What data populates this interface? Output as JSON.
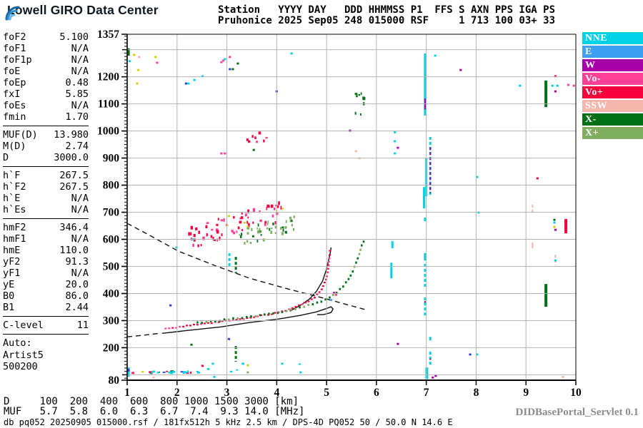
{
  "header": {
    "brand": "Lowell GIRO Data Center",
    "station_line1": "Station   YYYY DAY   DDD HHMMSS P1  FFS S AXN PPS IGA PS",
    "station_line2": "Pruhonice 2025 Sep05 248 015000 RSF     1 713 100 03+ 33"
  },
  "params": {
    "groups": [
      {
        "rows": [
          [
            "foF2",
            "5.100"
          ],
          [
            "foF1",
            "N/A"
          ],
          [
            "foF1p",
            "N/A"
          ],
          [
            "foE",
            "N/A"
          ],
          [
            "foEp",
            "0.48"
          ],
          [
            "fxI",
            "5.85"
          ],
          [
            "foEs",
            "N/A"
          ],
          [
            "fmin",
            "1.70"
          ]
        ]
      },
      {
        "rows": [
          [
            "MUF(D)",
            "13.980"
          ],
          [
            "M(D)",
            "2.74"
          ],
          [
            "D",
            "3000.0"
          ]
        ]
      },
      {
        "rows": [
          [
            "h`F",
            "267.5"
          ],
          [
            "h`F2",
            "267.5"
          ],
          [
            "h`E",
            "N/A"
          ],
          [
            "h`Es",
            "N/A"
          ]
        ]
      },
      {
        "rows": [
          [
            "hmF2",
            "346.4"
          ],
          [
            "hmF1",
            "N/A"
          ],
          [
            "hmE",
            "110.0"
          ],
          [
            "yF2",
            "91.3"
          ],
          [
            "yF1",
            "N/A"
          ],
          [
            "yE",
            "20.0"
          ],
          [
            "B0",
            "86.0"
          ],
          [
            "B1",
            "2.44"
          ]
        ]
      },
      {
        "rows": [
          [
            "C-level",
            "11"
          ]
        ]
      }
    ],
    "auto_lines": [
      "Auto:",
      "Artist5",
      "500200"
    ]
  },
  "legend": [
    {
      "label": "NNE",
      "color": "#00d2e6"
    },
    {
      "label": "E",
      "color": "#3f9ff0"
    },
    {
      "label": "W",
      "color": "#a800a8"
    },
    {
      "label": "Vo-",
      "color": "#ff4097"
    },
    {
      "label": "Vo+",
      "color": "#f8003c"
    },
    {
      "label": "SSW",
      "color": "#f4b6ac"
    },
    {
      "label": "X-",
      "color": "#007017"
    },
    {
      "label": "X+",
      "color": "#7fae5f"
    }
  ],
  "footer": {
    "d_row": "D     100  200  400  600  800 1000 1500 3000 [km]",
    "muf_row": "MUF   5.7  5.8  6.0  6.3  6.7  7.4  9.3 14.0 [MHz]",
    "status": "db pq052 20250905 015000.rsf / 181fx512h 5 kHz 2.5 km / DPS-4D PQ052 50 / 50.0 N 14.6 E",
    "servlet": "DIDBasePortal_Servlet 0.1"
  },
  "chart_data": {
    "type": "scatter",
    "x_unit": "MHz",
    "y_unit": "km",
    "xlim": [
      1,
      10
    ],
    "ylim": [
      80,
      1357
    ],
    "x_ticks": [
      1,
      2,
      3,
      4,
      5,
      6,
      7,
      8,
      9,
      10
    ],
    "y_ticks": [
      1357,
      1200,
      1100,
      1000,
      900,
      800,
      700,
      600,
      500,
      400,
      300,
      200,
      80
    ],
    "grid": true,
    "colors": {
      "nne": "#00d2e6",
      "e": "#3f9ff0",
      "w": "#a800a8",
      "vo_minus": "#ff4097",
      "vo_plus": "#f8003c",
      "ssw": "#f4b6ac",
      "x_minus": "#007017",
      "x_plus": "#7fae5f",
      "yellow": "#cfd000",
      "blue": "#2b3fd6",
      "grid": "#b3b3b3",
      "frame": "#000000"
    },
    "curves": [
      {
        "name": "topside-extrapolation-dashed",
        "style": "dashed",
        "points": [
          [
            1.0,
            659
          ],
          [
            1.46,
            614
          ],
          [
            2.03,
            556
          ],
          [
            2.75,
            504
          ],
          [
            3.46,
            456
          ],
          [
            4.18,
            419
          ],
          [
            4.9,
            385
          ],
          [
            5.47,
            356
          ],
          [
            5.83,
            338
          ]
        ]
      },
      {
        "name": "profile-below-fmin-dashed",
        "style": "dashed",
        "points": [
          [
            1.0,
            240
          ],
          [
            1.32,
            246
          ],
          [
            1.64,
            253
          ]
        ]
      },
      {
        "name": "true-height-profile",
        "style": "solid",
        "points": [
          [
            1.7,
            253
          ],
          [
            2.32,
            266
          ],
          [
            2.89,
            277
          ],
          [
            3.46,
            293
          ],
          [
            4.04,
            306
          ],
          [
            4.47,
            319
          ],
          [
            4.79,
            332
          ],
          [
            4.99,
            344
          ],
          [
            5.09,
            351
          ],
          [
            5.13,
            343
          ],
          [
            5.09,
            330
          ],
          [
            4.94,
            322
          ],
          [
            4.81,
            322
          ]
        ]
      },
      {
        "name": "synthesized-o-trace",
        "style": "solid",
        "points": [
          [
            4.26,
            335
          ],
          [
            4.47,
            356
          ],
          [
            4.66,
            380
          ],
          [
            4.8,
            409
          ],
          [
            4.92,
            446
          ],
          [
            4.99,
            485
          ],
          [
            5.05,
            530
          ],
          [
            5.08,
            556
          ],
          [
            5.09,
            570
          ]
        ]
      }
    ],
    "dot_traces": [
      {
        "name": "o-trace-echoes",
        "main": "vo_plus",
        "alt": "vo_minus",
        "ratio": 0.62,
        "step": 5.0,
        "size": [
          3,
          2.2
        ],
        "points": [
          [
            1.7,
            269
          ],
          [
            2.18,
            280
          ],
          [
            2.75,
            293
          ],
          [
            3.32,
            306
          ],
          [
            3.82,
            322
          ],
          [
            4.25,
            340
          ],
          [
            4.54,
            362
          ],
          [
            4.76,
            386
          ],
          [
            4.9,
            415
          ],
          [
            4.99,
            452
          ],
          [
            5.03,
            491
          ],
          [
            5.06,
            539
          ],
          [
            5.07,
            560
          ]
        ]
      },
      {
        "name": "x-trace-echoes",
        "main": "x_minus",
        "alt": "x_plus",
        "ratio": 0.72,
        "step": 6.3,
        "size": [
          2.6,
          3
        ],
        "points": [
          [
            2.32,
            290
          ],
          [
            2.89,
            301
          ],
          [
            3.46,
            314
          ],
          [
            4.04,
            330
          ],
          [
            4.47,
            348
          ],
          [
            4.83,
            366
          ],
          [
            5.08,
            385
          ],
          [
            5.23,
            409
          ],
          [
            5.35,
            430
          ],
          [
            5.45,
            456
          ],
          [
            5.53,
            485
          ],
          [
            5.6,
            517
          ],
          [
            5.66,
            546
          ],
          [
            5.7,
            575
          ],
          [
            5.76,
            598
          ]
        ]
      }
    ],
    "bars": [
      {
        "f": 6.975,
        "h": [
          1286,
          1057
        ],
        "c": "nne",
        "w": 3
      },
      {
        "f": 6.975,
        "h": [
          1120,
          1080
        ],
        "c": "w",
        "w": 2
      },
      {
        "f": 7.08,
        "h": [
          978,
          759
        ],
        "c": "nne",
        "w": 3,
        "dashed": true
      },
      {
        "f": 7.08,
        "h": [
          940,
          770
        ],
        "c": "w",
        "w": 2,
        "dashed": true
      },
      {
        "f": 7.0,
        "h": [
          899,
          759
        ],
        "c": "nne",
        "w": 3
      },
      {
        "f": 6.955,
        "h": [
          793,
          714
        ],
        "c": "nne",
        "w": 3
      },
      {
        "f": 6.975,
        "h": [
          680,
          667
        ],
        "c": "nne",
        "w": 3
      },
      {
        "f": 6.975,
        "h": [
          549,
          522
        ],
        "c": "nne",
        "w": 3
      },
      {
        "f": 6.975,
        "h": [
          509,
          425
        ],
        "c": "nne",
        "w": 3,
        "dashed": true
      },
      {
        "f": 6.975,
        "h": [
          372,
          359
        ],
        "c": "w",
        "w": 2
      },
      {
        "f": 6.975,
        "h": [
          385,
          319
        ],
        "c": "nne",
        "w": 3,
        "dashed": true
      },
      {
        "f": 7.08,
        "h": [
          240,
          227
        ],
        "c": "nne",
        "w": 3
      },
      {
        "f": 7.08,
        "h": [
          185,
          132
        ],
        "c": "nne",
        "w": 3,
        "dashed": true
      },
      {
        "f": 7.08,
        "h": [
          160,
          155
        ],
        "c": "w",
        "w": 2
      },
      {
        "f": 7.01,
        "h": [
          127,
          85
        ],
        "c": "nne",
        "w": 4
      },
      {
        "f": 6.32,
        "h": [
          593,
          567
        ],
        "c": "nne",
        "w": 3
      },
      {
        "f": 6.3,
        "h": [
          514,
          456
        ],
        "c": "nne",
        "w": 3
      },
      {
        "f": 9.4,
        "h": [
          1186,
          1088
        ],
        "c": "x_minus",
        "w": 4
      },
      {
        "f": 9.4,
        "h": [
          435,
          351
        ],
        "c": "x_minus",
        "w": 4
      },
      {
        "f": 9.8,
        "h": [
          675,
          622
        ],
        "c": "vo_plus",
        "w": 4
      },
      {
        "f": 9.13,
        "h": [
          728,
          694
        ],
        "c": "ssw",
        "w": 2,
        "dashed": true
      },
      {
        "f": 9.13,
        "h": [
          588,
          567
        ],
        "c": "ssw",
        "w": 2
      },
      {
        "f": 9.59,
        "h": [
          543,
          504
        ],
        "c": "ssw",
        "w": 2,
        "dashed": true
      },
      {
        "f": 3.18,
        "h": [
          535,
          475
        ],
        "c": "x_minus",
        "w": 3,
        "dashed": true
      },
      {
        "f": 3.05,
        "h": [
          549,
          500
        ],
        "c": "nne",
        "w": 3,
        "dashed": true
      },
      {
        "f": 3.18,
        "h": [
          206,
          148
        ],
        "c": "x_minus",
        "w": 3,
        "dashed": true
      },
      {
        "f": 1.03,
        "h": [
          1305,
          1278
        ],
        "c": "x_minus",
        "w": 3
      },
      {
        "f": 1.03,
        "h": [
          127,
          93
        ],
        "c": "nne",
        "w": 3
      },
      {
        "f": 1.03,
        "h": [
          122,
          112
        ],
        "c": "blue",
        "w": 3
      }
    ],
    "clusters": [
      {
        "name": "spread-f-red-band",
        "colors": [
          "vo_plus",
          "vo_minus"
        ],
        "band": {
          "f": [
            2.2,
            4.15
          ],
          "h": [
            600,
            710
          ],
          "spread": 30
        },
        "n": 62,
        "size": [
          2.5,
          3.5
        ]
      },
      {
        "name": "spread-f-green-band",
        "colors": [
          "x_minus",
          "x_plus"
        ],
        "band": {
          "f": [
            3.25,
            4.35
          ],
          "h": [
            602,
            662
          ],
          "spread": 24
        },
        "n": 42,
        "size": [
          2.2,
          3
        ]
      },
      {
        "name": "spread-f-yellow",
        "colors": [
          "yellow"
        ],
        "band": {
          "f": [
            2.5,
            4.2
          ],
          "h": [
            610,
            715
          ],
          "spread": 34
        },
        "n": 6,
        "size": [
          2,
          2
        ]
      },
      {
        "name": "upper-pink-patch",
        "colors": [
          "vo_minus",
          "vo_plus"
        ],
        "box": {
          "f": [
            3.38,
            3.85
          ],
          "h": [
            955,
            1010
          ]
        },
        "n": 9,
        "size": [
          2.5,
          3
        ]
      },
      {
        "name": "x-second-hop-green",
        "colors": [
          "x_minus"
        ],
        "box": {
          "f": [
            5.58,
            5.78
          ],
          "h": [
            1050,
            1165
          ]
        },
        "n": 9,
        "size": [
          2.5,
          3
        ]
      },
      {
        "name": "e-region-row",
        "colors": [
          "vo_plus",
          "nne",
          "x_minus",
          "yellow",
          "blue",
          "vo_minus",
          "nne",
          "nne"
        ],
        "box": {
          "f": [
            1.07,
            2.48
          ],
          "h": [
            106,
            114
          ]
        },
        "n": 26,
        "size": [
          3.2,
          2.2
        ]
      },
      {
        "name": "e-region-sparse",
        "colors": [
          "nne"
        ],
        "box": {
          "f": [
            2.55,
            4.5
          ],
          "h": [
            100,
            143
          ]
        },
        "n": 5,
        "size": [
          3,
          2
        ]
      }
    ],
    "dots": [
      [
        1.14,
        1281,
        "yellow"
      ],
      [
        1.24,
        1273,
        "ssw"
      ],
      [
        1.57,
        1273,
        "yellow"
      ],
      [
        1.6,
        1252,
        "vo_minus"
      ],
      [
        1.22,
        1225,
        "yellow"
      ],
      [
        1.2,
        1175,
        "yellow"
      ],
      [
        1.05,
        1258,
        "nne"
      ],
      [
        2.89,
        1254,
        "vo_minus"
      ],
      [
        2.93,
        1260,
        "vo_minus"
      ],
      [
        3.06,
        1273,
        "vo_minus"
      ],
      [
        2.96,
        1265,
        "nne"
      ],
      [
        3.22,
        1249,
        "x_minus"
      ],
      [
        3.06,
        1228,
        "blue"
      ],
      [
        3.12,
        1228,
        "x_minus"
      ],
      [
        4.3,
        1286,
        "nne"
      ],
      [
        2.18,
        1175,
        "blue"
      ],
      [
        2.23,
        1175,
        "nne"
      ],
      [
        2.35,
        1188,
        "nne"
      ],
      [
        2.51,
        1202,
        "nne"
      ],
      [
        4.0,
        1146,
        "blue"
      ],
      [
        2.89,
        917,
        "vo_minus"
      ],
      [
        2.96,
        917,
        "vo_minus"
      ],
      [
        3.54,
        930,
        "x_minus"
      ],
      [
        6.37,
        995,
        "nne"
      ],
      [
        6.37,
        962,
        "nne"
      ],
      [
        6.43,
        938,
        "w"
      ],
      [
        6.37,
        917,
        "nne"
      ],
      [
        7.69,
        1225,
        "w"
      ],
      [
        7.18,
        1278,
        "nne"
      ],
      [
        8.02,
        830,
        "nne"
      ],
      [
        8.05,
        699,
        "nne"
      ],
      [
        7.88,
        175,
        "blue"
      ],
      [
        8.02,
        175,
        "nne"
      ],
      [
        8.88,
        1167,
        "nne"
      ],
      [
        9.53,
        1167,
        "nne"
      ],
      [
        9.63,
        1167,
        "nne"
      ],
      [
        9.85,
        1170,
        "vo_minus"
      ],
      [
        9.96,
        1167,
        "vo_minus"
      ],
      [
        9.59,
        1202,
        "vo_plus"
      ],
      [
        9.59,
        1146,
        "w"
      ],
      [
        9.23,
        825,
        "vo_plus"
      ],
      [
        9.57,
        672,
        "x_minus"
      ],
      [
        9.57,
        662,
        "nne"
      ],
      [
        9.57,
        646,
        "yellow"
      ],
      [
        9.59,
        635,
        "w"
      ],
      [
        9.59,
        522,
        "nne"
      ],
      [
        6.43,
        214,
        "w"
      ],
      [
        7.19,
        96,
        "w"
      ],
      [
        2.51,
        133,
        "vo_plus"
      ],
      [
        2.72,
        141,
        "nne"
      ],
      [
        3.42,
        135,
        "yellow"
      ],
      [
        3.42,
        109,
        "x_plus"
      ],
      [
        4.11,
        141,
        "nne"
      ],
      [
        4.48,
        109,
        "nne"
      ],
      [
        5.47,
        1001,
        "w"
      ],
      [
        5.59,
        925,
        "ssw"
      ],
      [
        5.66,
        899,
        "ssw"
      ],
      [
        1.99,
        570,
        "nne"
      ],
      [
        2.32,
        600,
        "nne"
      ],
      [
        1.87,
        356,
        "blue"
      ],
      [
        2.29,
        211,
        "x_minus"
      ],
      [
        3.04,
        232,
        "blue"
      ],
      [
        5.15,
        402,
        "w"
      ],
      [
        5.19,
        395,
        "vo_minus"
      ],
      [
        5.09,
        376,
        "e"
      ],
      [
        1.53,
        90,
        "ssw"
      ],
      [
        2.75,
        92,
        "nne"
      ],
      [
        9.74,
        92,
        "ssw"
      ],
      [
        7.13,
        90,
        "w"
      ]
    ]
  }
}
